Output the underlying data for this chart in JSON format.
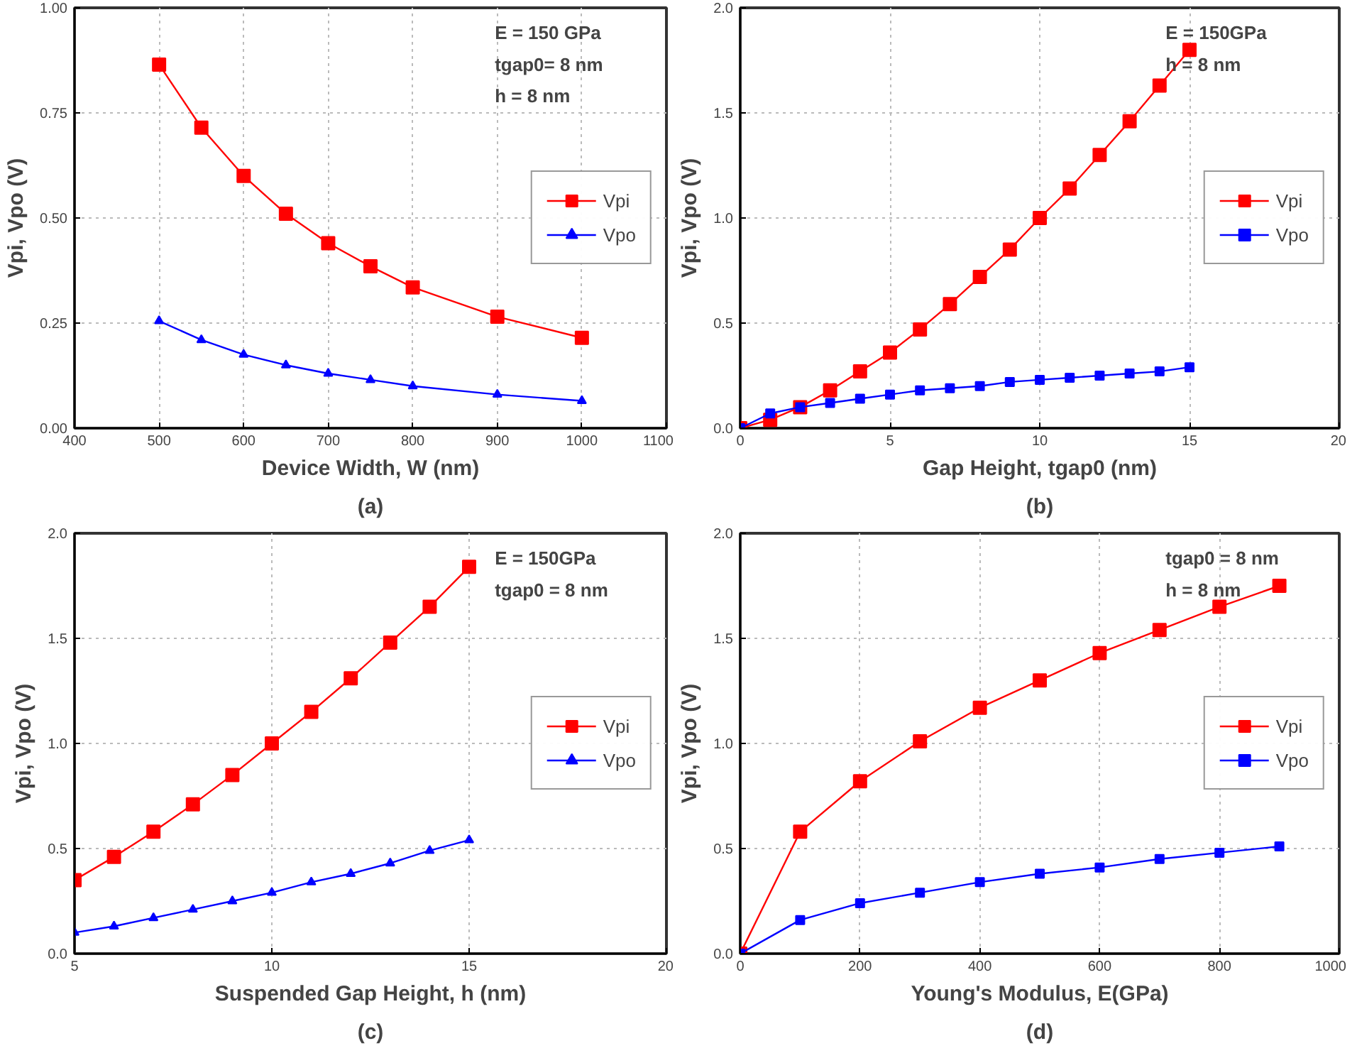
{
  "chart_data": [
    {
      "type": "line",
      "title": "(a)",
      "xlabel": "Device Width, W (nm)",
      "ylabel": "Vpi, Vpo (V)",
      "x": [
        500,
        550,
        600,
        650,
        700,
        750,
        800,
        900,
        1000
      ],
      "xlim": [
        400,
        1100
      ],
      "xticks": [
        400,
        500,
        600,
        700,
        800,
        900,
        1000,
        1100
      ],
      "ylim": [
        0,
        1
      ],
      "yticks": [
        {
          "value": 0,
          "label": "0.00"
        },
        {
          "value": 0.25,
          "label": "0.25"
        },
        {
          "value": 0.5,
          "label": "0.50"
        },
        {
          "value": 0.75,
          "label": "0.75"
        },
        {
          "value": 1,
          "label": "1.00"
        }
      ],
      "grid": true,
      "legend": "right",
      "line_style": "solid",
      "series": [
        {
          "name": "Vpi",
          "color": "#ff0000",
          "marker": "square",
          "values": [
            0.865,
            0.715,
            0.6,
            0.51,
            0.44,
            0.385,
            0.335,
            0.265,
            0.215
          ]
        },
        {
          "name": "Vpo",
          "color": "#0000ff",
          "marker": "triangle",
          "values": [
            0.255,
            0.21,
            0.175,
            0.15,
            0.13,
            0.115,
            0.1,
            0.08,
            0.065
          ]
        }
      ],
      "annotations": [
        "E = 150 GPa",
        "tgap0= 8 nm",
        "h = 8 nm"
      ]
    },
    {
      "type": "line",
      "title": "(b)",
      "xlabel": "Gap Height, tgap0 (nm)",
      "ylabel": "Vpi, Vpo (V)",
      "x": [
        0,
        1,
        2,
        3,
        4,
        5,
        6,
        7,
        8,
        9,
        10,
        11,
        12,
        13,
        14,
        15
      ],
      "xlim": [
        0,
        20
      ],
      "xticks": [
        0,
        5,
        10,
        15,
        20
      ],
      "ylim": [
        0,
        2
      ],
      "yticks": [
        {
          "value": 0,
          "label": "0.0"
        },
        {
          "value": 0.5,
          "label": "0.5"
        },
        {
          "value": 1,
          "label": "1.0"
        },
        {
          "value": 1.5,
          "label": "1.5"
        },
        {
          "value": 2,
          "label": "2.0"
        }
      ],
      "grid": true,
      "legend": "right",
      "line_style": "solid",
      "series": [
        {
          "name": "Vpi",
          "color": "#ff0000",
          "marker": "square",
          "values": [
            0,
            0.04,
            0.1,
            0.18,
            0.27,
            0.36,
            0.47,
            0.59,
            0.72,
            0.85,
            1.0,
            1.14,
            1.3,
            1.46,
            1.63,
            1.8
          ]
        },
        {
          "name": "Vpo",
          "color": "#0000ff",
          "marker": "square",
          "values": [
            0,
            0.07,
            0.1,
            0.12,
            0.14,
            0.16,
            0.18,
            0.19,
            0.2,
            0.22,
            0.23,
            0.24,
            0.25,
            0.26,
            0.27,
            0.29
          ]
        }
      ],
      "annotations": [
        "E = 150GPa",
        "h = 8 nm"
      ]
    },
    {
      "type": "line",
      "title": "(c)",
      "xlabel": "Suspended Gap Height, h (nm)",
      "ylabel": "Vpi, Vpo (V)",
      "x": [
        5,
        6,
        7,
        8,
        9,
        10,
        11,
        12,
        13,
        14,
        15
      ],
      "xlim": [
        5,
        20
      ],
      "xticks": [
        5,
        10,
        15,
        20
      ],
      "ylim": [
        0,
        2
      ],
      "yticks": [
        {
          "value": 0,
          "label": "0.0"
        },
        {
          "value": 0.5,
          "label": "0.5"
        },
        {
          "value": 1,
          "label": "1.0"
        },
        {
          "value": 1.5,
          "label": "1.5"
        },
        {
          "value": 2,
          "label": "2.0"
        }
      ],
      "grid": true,
      "legend": "right",
      "line_style": "solid",
      "series": [
        {
          "name": "Vpi",
          "color": "#ff0000",
          "marker": "square",
          "values": [
            0.35,
            0.46,
            0.58,
            0.71,
            0.85,
            1.0,
            1.15,
            1.31,
            1.48,
            1.65,
            1.84
          ]
        },
        {
          "name": "Vpo",
          "color": "#0000ff",
          "marker": "triangle",
          "values": [
            0.1,
            0.13,
            0.17,
            0.21,
            0.25,
            0.29,
            0.34,
            0.38,
            0.43,
            0.49,
            0.54
          ]
        }
      ],
      "annotations": [
        "E = 150GPa",
        "tgap0 = 8 nm"
      ]
    },
    {
      "type": "line",
      "title": "(d)",
      "xlabel": "Young's Modulus, E(GPa)",
      "ylabel": "Vpi, Vpo (V)",
      "x": [
        0,
        100,
        200,
        300,
        400,
        500,
        600,
        700,
        800,
        900
      ],
      "xlim": [
        0,
        1000
      ],
      "xticks": [
        0,
        200,
        400,
        600,
        800,
        1000
      ],
      "ylim": [
        0,
        2
      ],
      "yticks": [
        {
          "value": 0,
          "label": "0.0"
        },
        {
          "value": 0.5,
          "label": "0.5"
        },
        {
          "value": 1,
          "label": "1.0"
        },
        {
          "value": 1.5,
          "label": "1.5"
        },
        {
          "value": 2,
          "label": "2.0"
        }
      ],
      "grid": true,
      "legend": "right",
      "line_style": "solid",
      "series": [
        {
          "name": "Vpi",
          "color": "#ff0000",
          "marker": "square",
          "values": [
            0,
            0.58,
            0.82,
            1.01,
            1.17,
            1.3,
            1.43,
            1.54,
            1.65,
            1.75
          ]
        },
        {
          "name": "Vpo",
          "color": "#0000ff",
          "marker": "square",
          "values": [
            0,
            0.16,
            0.24,
            0.29,
            0.34,
            0.38,
            0.41,
            0.45,
            0.48,
            0.51
          ]
        }
      ],
      "annotations": [
        "tgap0 = 8 nm",
        "h = 8 nm"
      ]
    }
  ]
}
